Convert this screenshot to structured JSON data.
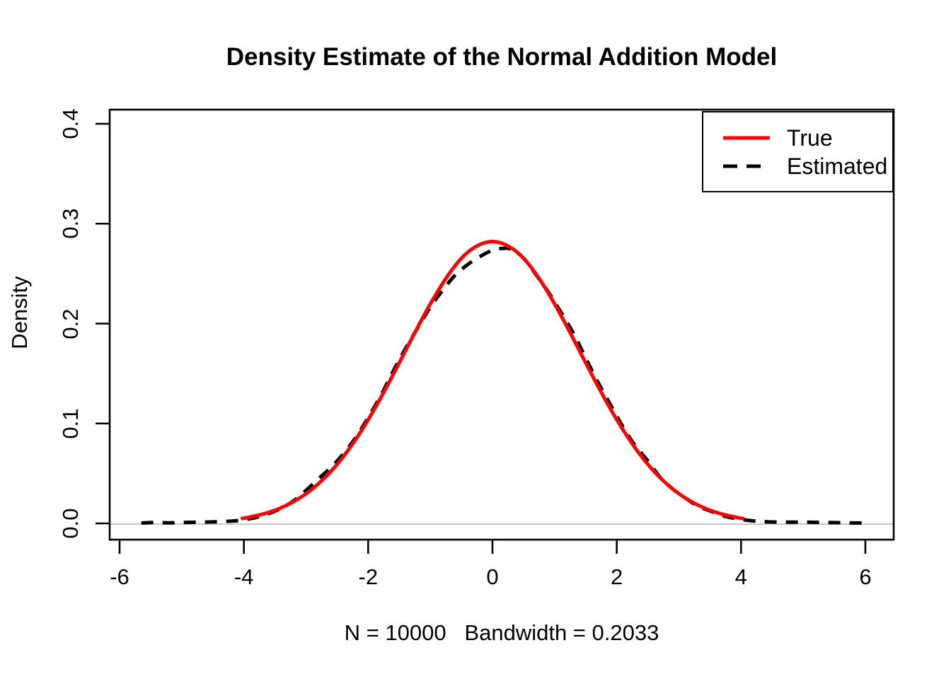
{
  "chart_data": {
    "type": "line",
    "title": "Density Estimate of the Normal Addition Model",
    "x_axis": {
      "label": "N = 10000   Bandwidth = 0.2033",
      "ticks": [
        -6,
        -4,
        -2,
        0,
        2,
        4,
        6
      ],
      "tick_labels": [
        "-6",
        "-4",
        "-2",
        "0",
        "2",
        "4",
        "6"
      ],
      "range": [
        -6.16,
        6.46
      ]
    },
    "y_axis": {
      "label": "Density",
      "ticks": [
        0,
        0.1,
        0.2,
        0.3,
        0.4
      ],
      "tick_labels": [
        "0.0",
        "0.1",
        "0.2",
        "0.3",
        "0.4"
      ],
      "range": [
        -0.016,
        0.414
      ]
    },
    "grid": false,
    "box": true,
    "zero_line": {
      "y": 0,
      "color": "#c8c8c8"
    },
    "axis_color": "#000000",
    "legend": {
      "position": "top-right"
    },
    "series": [
      {
        "name": "True",
        "color": "#ff0000",
        "line_style": "solid",
        "points": [
          [
            -4.05,
            0.0047
          ],
          [
            -4,
            0.0052
          ],
          [
            -3.75,
            0.0084
          ],
          [
            -3.5,
            0.0132
          ],
          [
            -3.25,
            0.0201
          ],
          [
            -3,
            0.0297
          ],
          [
            -2.75,
            0.0426
          ],
          [
            -2.5,
            0.0591
          ],
          [
            -2.25,
            0.0796
          ],
          [
            -2,
            0.1038
          ],
          [
            -1.75,
            0.1312
          ],
          [
            -1.5,
            0.1607
          ],
          [
            -1.25,
            0.1909
          ],
          [
            -1,
            0.2197
          ],
          [
            -0.75,
            0.2451
          ],
          [
            -0.5,
            0.2654
          ],
          [
            -0.25,
            0.2777
          ],
          [
            0,
            0.2821
          ],
          [
            0.25,
            0.2777
          ],
          [
            0.5,
            0.2654
          ],
          [
            0.75,
            0.2451
          ],
          [
            1,
            0.2197
          ],
          [
            1.25,
            0.1909
          ],
          [
            1.5,
            0.1607
          ],
          [
            1.75,
            0.1312
          ],
          [
            2,
            0.1038
          ],
          [
            2.25,
            0.0796
          ],
          [
            2.5,
            0.0591
          ],
          [
            2.75,
            0.0426
          ],
          [
            3,
            0.0297
          ],
          [
            3.25,
            0.0201
          ],
          [
            3.5,
            0.0132
          ],
          [
            3.75,
            0.0084
          ],
          [
            4,
            0.0052
          ],
          [
            4.05,
            0.0047
          ]
        ]
      },
      {
        "name": "Estimated",
        "color": "#000000",
        "line_style": "dashed",
        "points": [
          [
            -5.65,
            0.0004
          ],
          [
            -5.45,
            0.0009
          ],
          [
            -5.2,
            0.0006
          ],
          [
            -4.95,
            0.001
          ],
          [
            -4.7,
            0.0012
          ],
          [
            -4.45,
            0.0016
          ],
          [
            -4.2,
            0.0023
          ],
          [
            -4,
            0.0036
          ],
          [
            -3.8,
            0.006
          ],
          [
            -3.6,
            0.0098
          ],
          [
            -3.4,
            0.0152
          ],
          [
            -3.2,
            0.0225
          ],
          [
            -3,
            0.033
          ],
          [
            -2.8,
            0.0445
          ],
          [
            -2.6,
            0.056
          ],
          [
            -2.4,
            0.0695
          ],
          [
            -2.2,
            0.086
          ],
          [
            -2,
            0.106
          ],
          [
            -1.8,
            0.1275
          ],
          [
            -1.6,
            0.152
          ],
          [
            -1.4,
            0.175
          ],
          [
            -1.2,
            0.196
          ],
          [
            -1,
            0.2165
          ],
          [
            -0.8,
            0.2335
          ],
          [
            -0.6,
            0.2485
          ],
          [
            -0.4,
            0.259
          ],
          [
            -0.2,
            0.2672
          ],
          [
            0,
            0.2735
          ],
          [
            0.15,
            0.2752
          ],
          [
            0.3,
            0.2745
          ],
          [
            0.5,
            0.2655
          ],
          [
            0.7,
            0.249
          ],
          [
            0.9,
            0.2315
          ],
          [
            1.1,
            0.2115
          ],
          [
            1.3,
            0.1905
          ],
          [
            1.5,
            0.1655
          ],
          [
            1.7,
            0.141
          ],
          [
            1.9,
            0.1185
          ],
          [
            2.1,
            0.0965
          ],
          [
            2.3,
            0.0775
          ],
          [
            2.5,
            0.0625
          ],
          [
            2.7,
            0.046
          ],
          [
            2.9,
            0.0345
          ],
          [
            3.1,
            0.0255
          ],
          [
            3.3,
            0.0175
          ],
          [
            3.5,
            0.0125
          ],
          [
            3.75,
            0.007
          ],
          [
            4,
            0.004
          ],
          [
            4.25,
            0.0022
          ],
          [
            4.5,
            0.0014
          ],
          [
            4.75,
            0.0012
          ],
          [
            5,
            0.0013
          ],
          [
            5.25,
            0.001
          ],
          [
            5.5,
            0.0008
          ],
          [
            5.75,
            0.0006
          ],
          [
            5.95,
            0.0004
          ]
        ]
      }
    ]
  }
}
